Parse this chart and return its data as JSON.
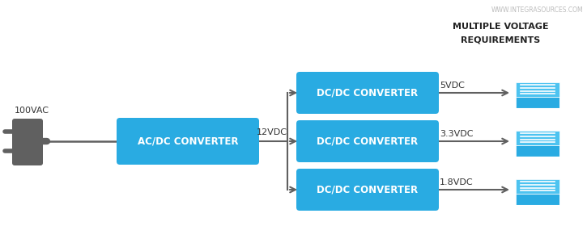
{
  "bg_color": "#ffffff",
  "box_color": "#29ABE2",
  "box_text_color": "#ffffff",
  "arrow_color": "#606060",
  "label_color": "#333333",
  "watermark": "WWW.INTEGRASOURCES.COM",
  "watermark_color": "#bbbbbb",
  "title_line1": "MULTIPLE VOLTAGE",
  "title_line2": "REQUIREMENTS",
  "title_color": "#222222",
  "ac_dc_label": "AC/DC CONVERTER",
  "dc_dc_label": "DC/DC CONVERTER",
  "input_label": "100VAC",
  "mid_label": "12VDC",
  "output_labels": [
    "5VDC",
    "3.3VDC",
    "1.8VDC"
  ],
  "plug_color": "#606060",
  "chip_color": "#29ABE2",
  "chip_shadow": "#1a7aaa",
  "chip_top": "#4dc3f0",
  "chip_lines": "#ffffff"
}
